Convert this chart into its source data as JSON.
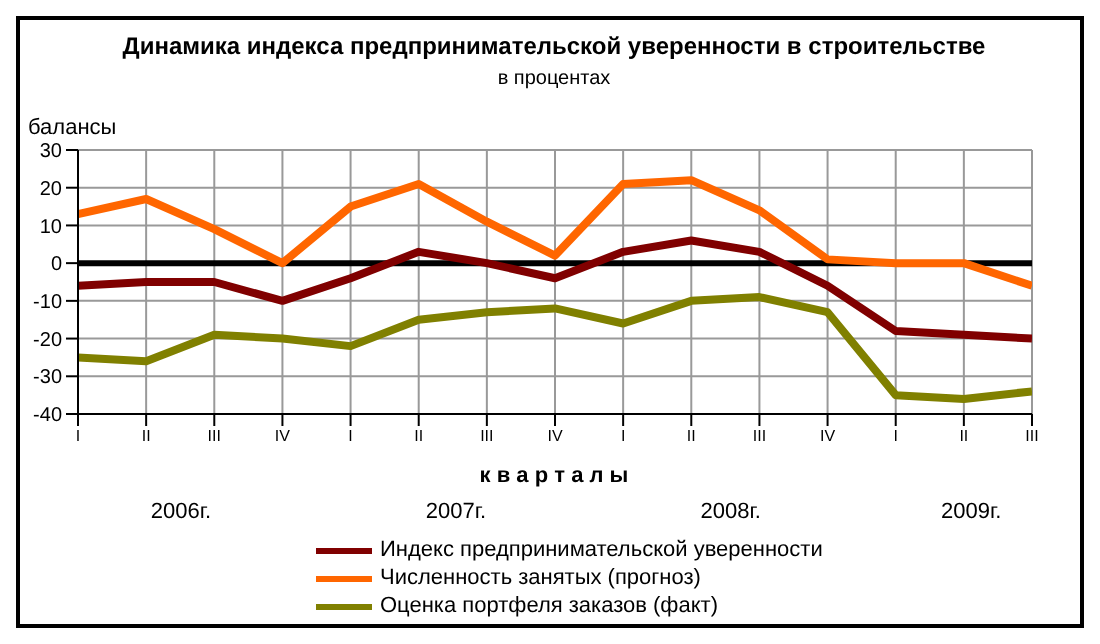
{
  "chart_data": {
    "type": "line",
    "title": "Динамика индекса предпринимательской уверенности в строительстве",
    "subtitle": "в процентах",
    "ylabel": "балансы",
    "xlabel": "к в а р т а л ы",
    "categories": [
      "I",
      "II",
      "III",
      "IV",
      "I",
      "II",
      "III",
      "IV",
      "I",
      "II",
      "III",
      "IV",
      "I",
      "II",
      "III"
    ],
    "series": [
      {
        "name": "Индекс предпринимательской уверенности",
        "color": "#800000",
        "values": [
          -6,
          -5,
          -5,
          -10,
          -4,
          3,
          0,
          -4,
          3,
          6,
          3,
          -6,
          -18,
          -19,
          -20
        ]
      },
      {
        "name": "Численность занятых (прогноз)",
        "color": "#ff6600",
        "values": [
          13,
          17,
          9,
          0,
          15,
          21,
          11,
          2,
          21,
          22,
          14,
          1,
          0,
          0,
          -6
        ]
      },
      {
        "name": "Оценка портфеля заказов (факт)",
        "color": "#808000",
        "values": [
          -25,
          -26,
          -19,
          -20,
          -22,
          -15,
          -13,
          -12,
          -16,
          -10,
          -9,
          -13,
          -35,
          -36,
          -34
        ]
      }
    ],
    "annotations": [
      "2006г.",
      "2007г.",
      "2008г.",
      "2009г."
    ],
    "ref_lines": [
      {
        "axis": "y",
        "value": 0,
        "color": "#000000"
      }
    ],
    "ylim": [
      -40,
      30
    ],
    "yticks": [
      -40,
      -30,
      -20,
      -10,
      0,
      10,
      20,
      30
    ],
    "grid": true,
    "legend": "bottom",
    "marker": "none",
    "line_style": "solid"
  }
}
